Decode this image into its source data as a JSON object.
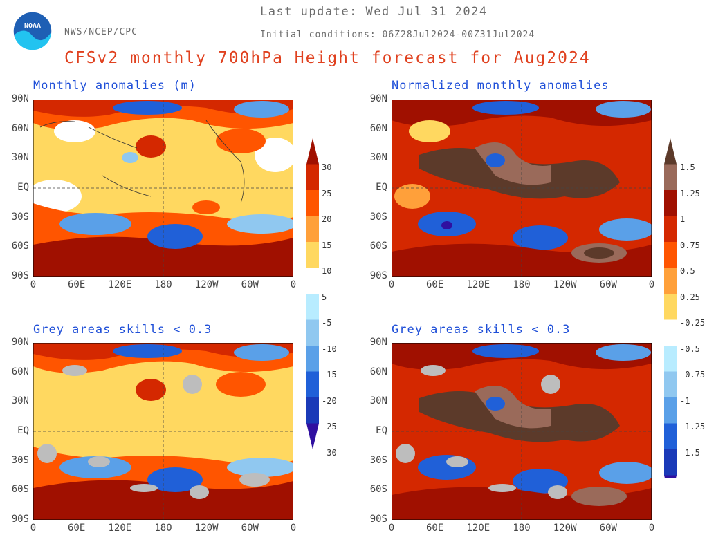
{
  "header": {
    "last_update": "Last update: Wed Jul 31 2024",
    "agency": "NWS/NCEP/CPC",
    "initial_conditions": "Initial conditions: 06Z28Jul2024-00Z31Jul2024",
    "title": "CFSv2 monthly 700hPa Height forecast for Aug2024",
    "logo_text": "NOAA"
  },
  "panels": [
    {
      "title": "Monthly anomalies (m)"
    },
    {
      "title": "Normalized monthly anomalies"
    },
    {
      "title": "Grey areas skills < 0.3"
    },
    {
      "title": "Grey areas skills < 0.3"
    }
  ],
  "axes": {
    "lat_ticks": [
      "90N",
      "60N",
      "30N",
      "EQ",
      "30S",
      "60S",
      "90S"
    ],
    "lon_ticks": [
      "0",
      "60E",
      "120E",
      "180",
      "120W",
      "60W",
      "0"
    ]
  },
  "colorbars": {
    "left": {
      "labels": [
        "30",
        "25",
        "20",
        "15",
        "10",
        "5",
        "-5",
        "-10",
        "-15",
        "-20",
        "-25",
        "-30"
      ]
    },
    "right": {
      "labels": [
        "1.5",
        "1.25",
        "1",
        "0.75",
        "0.5",
        "0.25",
        "-0.25",
        "-0.5",
        "-0.75",
        "-1",
        "-1.25",
        "-1.5"
      ]
    }
  },
  "colors": {
    "pos": [
      "#5c3a2a",
      "#9a6a5a",
      "#a01000",
      "#d42800",
      "#ff5500",
      "#ffa03a",
      "#ffd860"
    ],
    "neg": [
      "#b8ecff",
      "#90c8f0",
      "#5aa0e8",
      "#2060d8",
      "#1a3ab8",
      "#3010a0"
    ],
    "grey": "#bdbdbd",
    "title_red": "#e0411f",
    "panel_title_blue": "#1f4fd8"
  }
}
